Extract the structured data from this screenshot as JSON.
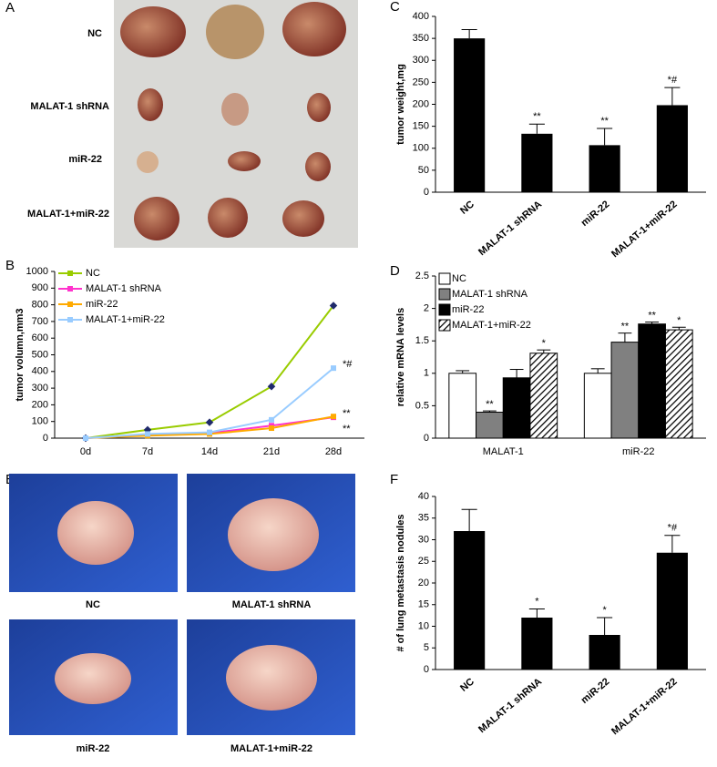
{
  "photo_panels": [
    {
      "panel": "A",
      "labels": [
        "NC",
        "MALAT-1 shRNA",
        "miR-22",
        "MALAT-1+miR-22"
      ]
    },
    {
      "panel": "E",
      "labels": [
        "NC",
        "MALAT-1 shRNA",
        "miR-22",
        "MALAT-1+miR-22"
      ]
    }
  ],
  "chart_data": [
    {
      "panel": "C",
      "type": "bar",
      "ylabel": "tumor weight,mg",
      "categories": [
        "NC",
        "MALAT-1 shRNA",
        "miR-22",
        "MALAT-1+miR-22"
      ],
      "values": [
        350,
        133,
        107,
        198
      ],
      "errors": [
        20,
        22,
        38,
        40
      ],
      "annotations": [
        null,
        "**",
        "**",
        "*#"
      ],
      "color": "#000000",
      "ylim": [
        0,
        400
      ],
      "yticks": [
        0,
        50,
        100,
        150,
        200,
        250,
        300,
        350,
        400
      ]
    },
    {
      "panel": "B",
      "type": "line",
      "ylabel": "tumor volumn,mm3",
      "categories": [
        "0d",
        "7d",
        "14d",
        "21d",
        "28d"
      ],
      "series": [
        {
          "name": "NC",
          "color": "#99cc00",
          "marker": "diamond",
          "values": [
            0,
            50,
            95,
            310,
            795
          ]
        },
        {
          "name": "MALAT-1 shRNA",
          "color": "#ff33cc",
          "marker": "square",
          "values": [
            0,
            20,
            30,
            75,
            125
          ],
          "annotation": "**"
        },
        {
          "name": "miR-22",
          "color": "#ffaa00",
          "marker": "triangle",
          "values": [
            0,
            15,
            25,
            60,
            130
          ],
          "annotation": "**"
        },
        {
          "name": "MALAT-1+miR-22",
          "color": "#99ccff",
          "marker": "x",
          "values": [
            0,
            25,
            35,
            110,
            420
          ],
          "annotation": "*#"
        }
      ],
      "ylim": [
        0,
        1000
      ],
      "yticks": [
        0,
        100,
        200,
        300,
        400,
        500,
        600,
        700,
        800,
        900,
        1000
      ],
      "legend": "top-left"
    },
    {
      "panel": "D",
      "type": "grouped-bar",
      "ylabel": "relative mRNA levels",
      "categories": [
        "MALAT-1",
        "miR-22"
      ],
      "series": [
        {
          "name": "NC",
          "color": "#ffffff",
          "values": [
            1.0,
            1.0
          ],
          "errors": [
            0.04,
            0.07
          ],
          "annotations": [
            null,
            null
          ]
        },
        {
          "name": "MALAT-1 shRNA",
          "color": "#808080",
          "values": [
            0.4,
            1.48
          ],
          "errors": [
            0.02,
            0.14
          ],
          "annotations": [
            "**",
            "**"
          ]
        },
        {
          "name": "miR-22",
          "color": "#000000",
          "values": [
            0.93,
            1.76
          ],
          "errors": [
            0.13,
            0.03
          ],
          "annotations": [
            null,
            "**"
          ]
        },
        {
          "name": "MALAT-1+miR-22",
          "color": "#000000",
          "hatch": true,
          "values": [
            1.31,
            1.67
          ],
          "errors": [
            0.05,
            0.04
          ],
          "annotations": [
            "*",
            "*"
          ]
        }
      ],
      "ylim": [
        0,
        2.5
      ],
      "yticks": [
        0,
        0.5,
        1,
        1.5,
        2,
        2.5
      ],
      "legend": "top-left"
    },
    {
      "panel": "F",
      "type": "bar",
      "ylabel": "# of lung metastasis nodules",
      "categories": [
        "NC",
        "MALAT-1 shRNA",
        "miR-22",
        "MALAT-1+miR-22"
      ],
      "values": [
        32,
        12,
        8,
        27
      ],
      "errors": [
        5,
        2,
        4,
        4
      ],
      "annotations": [
        null,
        "*",
        "*",
        "*#"
      ],
      "color": "#000000",
      "ylim": [
        0,
        40
      ],
      "yticks": [
        0,
        5,
        10,
        15,
        20,
        25,
        30,
        35,
        40
      ]
    }
  ]
}
